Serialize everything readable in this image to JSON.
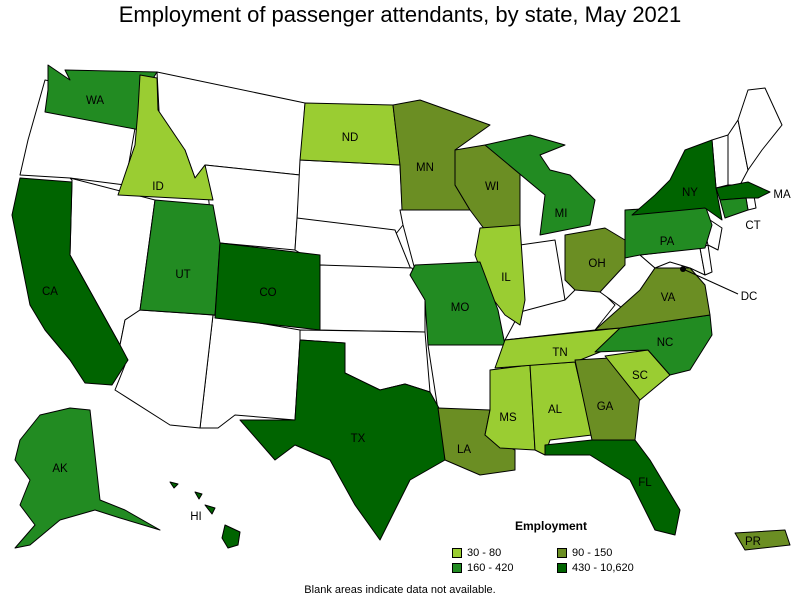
{
  "title": "Employment of passenger attendants, by state, May 2021",
  "footnote": "Blank areas indicate data not available.",
  "legend": {
    "title": "Employment",
    "classes": [
      {
        "label": "30 - 80",
        "color": "#9acd32"
      },
      {
        "label": "90 - 150",
        "color": "#6b8e23"
      },
      {
        "label": "160 - 420",
        "color": "#228b22"
      },
      {
        "label": "430 - 10,620",
        "color": "#006400"
      }
    ]
  },
  "no_data_color": "#ffffff",
  "states": [
    {
      "abbr": "WA",
      "class": 2
    },
    {
      "abbr": "ID",
      "class": 0
    },
    {
      "abbr": "CA",
      "class": 3
    },
    {
      "abbr": "UT",
      "class": 2
    },
    {
      "abbr": "CO",
      "class": 3
    },
    {
      "abbr": "ND",
      "class": 0
    },
    {
      "abbr": "MN",
      "class": 1
    },
    {
      "abbr": "WI",
      "class": 1
    },
    {
      "abbr": "MI",
      "class": 2
    },
    {
      "abbr": "IL",
      "class": 0
    },
    {
      "abbr": "MO",
      "class": 2
    },
    {
      "abbr": "TX",
      "class": 3
    },
    {
      "abbr": "LA",
      "class": 1
    },
    {
      "abbr": "MS",
      "class": 0
    },
    {
      "abbr": "AL",
      "class": 0
    },
    {
      "abbr": "TN",
      "class": 0
    },
    {
      "abbr": "GA",
      "class": 1
    },
    {
      "abbr": "FL",
      "class": 3
    },
    {
      "abbr": "SC",
      "class": 0
    },
    {
      "abbr": "NC",
      "class": 2
    },
    {
      "abbr": "VA",
      "class": 1
    },
    {
      "abbr": "OH",
      "class": 1
    },
    {
      "abbr": "PA",
      "class": 2
    },
    {
      "abbr": "NY",
      "class": 3
    },
    {
      "abbr": "MA",
      "class": 3
    },
    {
      "abbr": "CT",
      "class": 2
    },
    {
      "abbr": "DC",
      "class": null
    },
    {
      "abbr": "AK",
      "class": 2
    },
    {
      "abbr": "HI",
      "class": 3
    },
    {
      "abbr": "PR",
      "class": 1
    }
  ],
  "unlabeled_states": [
    "OR",
    "NV",
    "MT",
    "WY",
    "SD",
    "NE",
    "KS",
    "OK",
    "NM",
    "AZ",
    "IA",
    "AR",
    "IN",
    "KY",
    "WV",
    "MD",
    "DE",
    "NJ",
    "VT",
    "NH",
    "ME",
    "RI"
  ]
}
